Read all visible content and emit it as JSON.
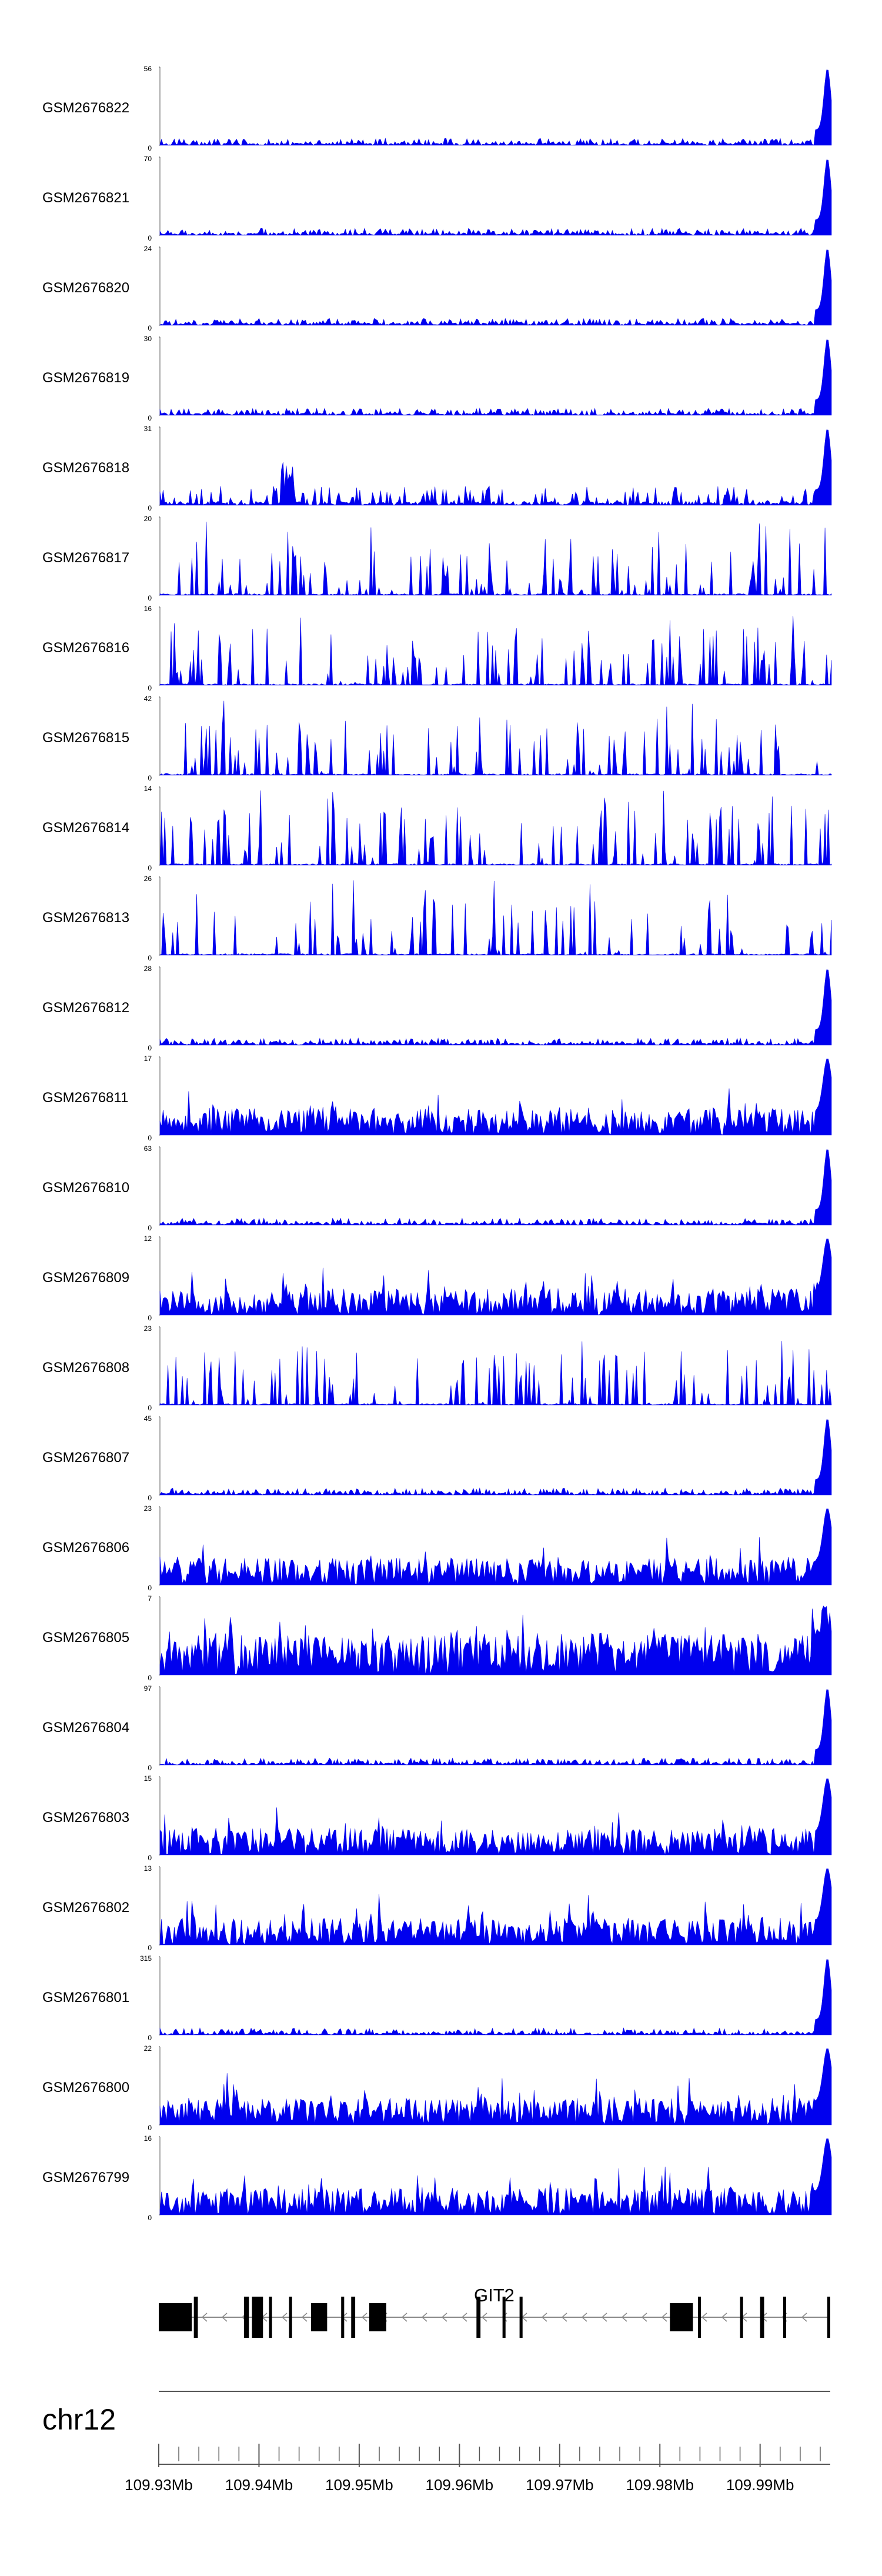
{
  "colors": {
    "signal": "#0000ee",
    "axis": "#555555",
    "exon": "#000000",
    "intron": "#888888"
  },
  "chart_data": {
    "type": "area",
    "region": {
      "chrom": "chr12",
      "start": 109930000,
      "end": 109997000
    },
    "tracks": [
      {
        "label": "GSM2676822",
        "ymax": "56",
        "ymin": "0",
        "profile": "low-noise-end-peak"
      },
      {
        "label": "GSM2676821",
        "ymax": "70",
        "ymin": "0",
        "profile": "low-noise-end-peak"
      },
      {
        "label": "GSM2676820",
        "ymax": "24",
        "ymin": "0",
        "profile": "low-noise-end-peak"
      },
      {
        "label": "GSM2676819",
        "ymax": "30",
        "ymin": "0",
        "profile": "low-noise-end-peak"
      },
      {
        "label": "GSM2676818",
        "ymax": "31",
        "ymin": "0",
        "profile": "spiky-end-peak"
      },
      {
        "label": "GSM2676817",
        "ymax": "20",
        "ymin": "0",
        "profile": "sparse-spiky"
      },
      {
        "label": "GSM2676816",
        "ymax": "16",
        "ymin": "0",
        "profile": "sparse-spiky"
      },
      {
        "label": "GSM2676815",
        "ymax": "42",
        "ymin": "0",
        "profile": "sparse-spiky"
      },
      {
        "label": "GSM2676814",
        "ymax": "14",
        "ymin": "0",
        "profile": "sparse-spiky"
      },
      {
        "label": "GSM2676813",
        "ymax": "26",
        "ymin": "0",
        "profile": "sparse-spiky"
      },
      {
        "label": "GSM2676812",
        "ymax": "28",
        "ymin": "0",
        "profile": "low-noise-end-peak"
      },
      {
        "label": "GSM2676811",
        "ymax": "17",
        "ymin": "0",
        "profile": "dense-noise-end-peak"
      },
      {
        "label": "GSM2676810",
        "ymax": "63",
        "ymin": "0",
        "profile": "low-noise-end-peak"
      },
      {
        "label": "GSM2676809",
        "ymax": "12",
        "ymin": "0",
        "profile": "dense-noise-end-peak"
      },
      {
        "label": "GSM2676808",
        "ymax": "23",
        "ymin": "0",
        "profile": "sparse-spiky"
      },
      {
        "label": "GSM2676807",
        "ymax": "45",
        "ymin": "0",
        "profile": "low-noise-end-peak"
      },
      {
        "label": "GSM2676806",
        "ymax": "23",
        "ymin": "0",
        "profile": "dense-noise-end-peak"
      },
      {
        "label": "GSM2676805",
        "ymax": "7",
        "ymin": "0",
        "profile": "very-dense"
      },
      {
        "label": "GSM2676804",
        "ymax": "97",
        "ymin": "0",
        "profile": "low-noise-end-peak"
      },
      {
        "label": "GSM2676803",
        "ymax": "15",
        "ymin": "0",
        "profile": "dense-noise-end-peak"
      },
      {
        "label": "GSM2676802",
        "ymax": "13",
        "ymin": "0",
        "profile": "dense-noise-end-peak"
      },
      {
        "label": "GSM2676801",
        "ymax": "315",
        "ymin": "0",
        "profile": "low-noise-end-peak"
      },
      {
        "label": "GSM2676800",
        "ymax": "22",
        "ymin": "0",
        "profile": "dense-noise-end-peak"
      },
      {
        "label": "GSM2676799",
        "ymax": "16",
        "ymin": "0",
        "profile": "dense-noise-end-peak"
      }
    ],
    "gene": {
      "name": "GIT2",
      "strand": "-",
      "exons": [
        [
          109930000,
          109933300
        ],
        [
          109933500,
          109933900
        ],
        [
          109938500,
          109939000
        ],
        [
          109939300,
          109940400
        ],
        [
          109941000,
          109941300
        ],
        [
          109943000,
          109943300
        ],
        [
          109945200,
          109946800
        ],
        [
          109948200,
          109948500
        ],
        [
          109949200,
          109949600
        ],
        [
          109951000,
          109952700
        ],
        [
          109961700,
          109962100
        ],
        [
          109964300,
          109964600
        ],
        [
          109966000,
          109966300
        ],
        [
          109981000,
          109983300
        ],
        [
          109983800,
          109984100
        ],
        [
          109988000,
          109988300
        ],
        [
          109990000,
          109990400
        ],
        [
          109992300,
          109992600
        ],
        [
          109996700,
          109997000
        ]
      ]
    },
    "x_axis": {
      "chrom_label": "chr12",
      "ticks": [
        {
          "pos": 109930000,
          "label": "109.93Mb"
        },
        {
          "pos": 109940000,
          "label": "109.94Mb"
        },
        {
          "pos": 109950000,
          "label": "109.95Mb"
        },
        {
          "pos": 109960000,
          "label": "109.96Mb"
        },
        {
          "pos": 109970000,
          "label": "109.97Mb"
        },
        {
          "pos": 109980000,
          "label": "109.98Mb"
        },
        {
          "pos": 109990000,
          "label": "109.99Mb"
        }
      ]
    }
  }
}
